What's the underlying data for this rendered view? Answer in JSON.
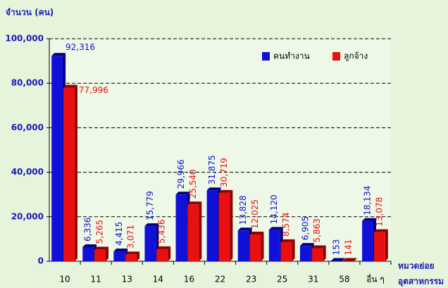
{
  "chart_data": {
    "type": "bar",
    "y_label": "จำนวน (คน)",
    "x_label": [
      "หมวดย่อย",
      "อุตสาหกรรม"
    ],
    "categories": [
      "10",
      "11",
      "13",
      "14",
      "16",
      "22",
      "23",
      "25",
      "31",
      "58",
      "อื่น ๆ"
    ],
    "series": [
      {
        "name": "คนทำงาน",
        "color": "#1010d8",
        "values": [
          92316,
          6336,
          4415,
          15779,
          29966,
          31875,
          13828,
          14120,
          6905,
          153,
          18134
        ],
        "value_labels": [
          "92,316",
          "6,336",
          "4,415",
          "15,779",
          "29,966",
          "31,875",
          "13,828",
          "14,120",
          "6,905",
          "153",
          "18,134"
        ]
      },
      {
        "name": "ลูกจ้าง",
        "color": "#e81010",
        "values": [
          77996,
          5265,
          3071,
          5436,
          25540,
          30719,
          12025,
          8574,
          5863,
          141,
          13078
        ],
        "value_labels": [
          "77,996",
          "5,265",
          "3,071",
          "5,436",
          "25,540",
          "30,719",
          "12,025",
          "8,574",
          "5,863",
          "141",
          "13,078"
        ]
      }
    ],
    "ylim": [
      0,
      100000
    ],
    "yticks": [
      0,
      {
        "value": 20000,
        "label": "20,000"
      },
      {
        "value": 40000,
        "label": "40,000"
      },
      {
        "value": 60000,
        "label": "60,000"
      },
      {
        "value": 80000,
        "label": "80,000"
      },
      {
        "value": 100000,
        "label": "100,000"
      }
    ],
    "grid": true,
    "legend": "top-right"
  }
}
